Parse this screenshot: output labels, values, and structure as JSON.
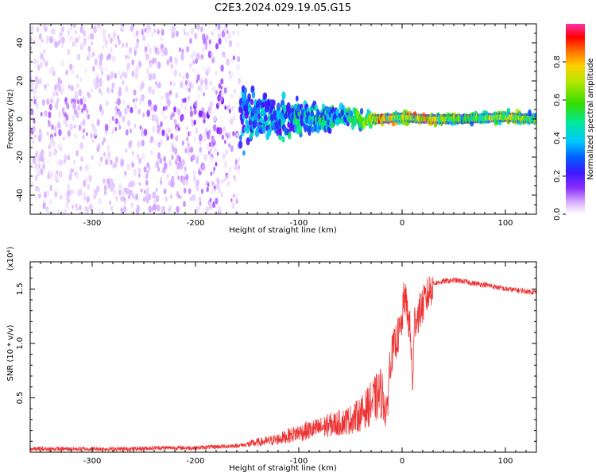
{
  "figure": {
    "title": "C2E3.2024.029.19.05.G15"
  },
  "colors": {
    "snr_line": "#ee3333",
    "colormap": [
      "#ffffff",
      "#d9b3ff",
      "#9933ff",
      "#6600ff",
      "#2222ff",
      "#00c8ff",
      "#00e89a",
      "#33dd00",
      "#b8e600",
      "#ffd000",
      "#ff6a00",
      "#ff0000",
      "#ff33aa"
    ]
  },
  "chart_data": [
    {
      "type": "heatmap",
      "title": "",
      "xlabel": "Height of straight line (km)",
      "ylabel": "Frequency (Hz)",
      "xlim": [
        -360,
        130
      ],
      "ylim": [
        -50,
        50
      ],
      "xticks": [
        -300,
        -200,
        -100,
        0,
        100
      ],
      "xtick_labels": [
        "-300",
        "-200",
        "-100",
        "0",
        "100"
      ],
      "yticks": [
        -40,
        -20,
        0,
        20,
        40
      ],
      "ytick_labels": [
        "-40",
        "-20",
        "0",
        "20",
        "40"
      ],
      "colorbar": {
        "label": "Normalized spectral amplitude",
        "range": [
          0.0,
          1.0
        ],
        "ticks": [
          0.0,
          0.2,
          0.4,
          0.6,
          0.8
        ],
        "tick_labels": [
          "0.0",
          "0.2",
          "0.4",
          "0.6",
          "0.8"
        ]
      },
      "grid": false,
      "description_points": [
        {
          "x": -300,
          "peak_freq": 0,
          "spread_hz": 50,
          "amplitude": 0.15
        },
        {
          "x": -200,
          "peak_freq": 0,
          "spread_hz": 50,
          "amplitude": 0.2
        },
        {
          "x": -150,
          "peak_freq": 2,
          "spread_hz": 15,
          "amplitude": 0.45
        },
        {
          "x": -100,
          "peak_freq": 1,
          "spread_hz": 8,
          "amplitude": 0.5
        },
        {
          "x": -50,
          "peak_freq": 0,
          "spread_hz": 5,
          "amplitude": 0.55
        },
        {
          "x": -20,
          "peak_freq": 0,
          "spread_hz": 2,
          "amplitude": 0.85
        },
        {
          "x": 0,
          "peak_freq": 1,
          "spread_hz": 3,
          "amplitude": 0.7
        },
        {
          "x": 20,
          "peak_freq": 0,
          "spread_hz": 2,
          "amplitude": 0.85
        },
        {
          "x": 60,
          "peak_freq": 0,
          "spread_hz": 2,
          "amplitude": 0.6
        },
        {
          "x": 100,
          "peak_freq": 1,
          "spread_hz": 3,
          "amplitude": 0.75
        },
        {
          "x": 130,
          "peak_freq": 0,
          "spread_hz": 2,
          "amplitude": 0.6
        }
      ]
    },
    {
      "type": "line",
      "title": "",
      "xlabel": "Height of straight line (km)",
      "ylabel": "SNR (10 * v/v)",
      "scale_label": "(x10⁴)",
      "xlim": [
        -360,
        130
      ],
      "ylim": [
        0.0,
        1.75
      ],
      "xticks": [
        -300,
        -200,
        -100,
        0,
        100
      ],
      "xtick_labels": [
        "-300",
        "-200",
        "-100",
        "0",
        "100"
      ],
      "yticks": [
        0.5,
        1.0,
        1.5
      ],
      "ytick_labels": [
        "0.5",
        "1.0",
        "1.5"
      ],
      "grid": false,
      "series": [
        {
          "x": [
            -360,
            -340,
            -320,
            -300,
            -280,
            -260,
            -240,
            -220,
            -200,
            -180,
            -160,
            -150,
            -140,
            -130,
            -120,
            -110,
            -100,
            -90,
            -80,
            -70,
            -60,
            -50,
            -40,
            -30,
            -25,
            -20,
            -17,
            -15,
            -12,
            -10,
            -8,
            -5,
            -2,
            0,
            2,
            5,
            8,
            10,
            12,
            15,
            20,
            25,
            30,
            40,
            50,
            60,
            70,
            80,
            90,
            95,
            100,
            110,
            120,
            130
          ],
          "y": [
            0.03,
            0.03,
            0.03,
            0.03,
            0.03,
            0.03,
            0.04,
            0.04,
            0.04,
            0.05,
            0.06,
            0.07,
            0.09,
            0.1,
            0.12,
            0.15,
            0.18,
            0.2,
            0.22,
            0.25,
            0.27,
            0.3,
            0.35,
            0.45,
            0.5,
            0.55,
            0.45,
            0.3,
            0.8,
            0.9,
            0.95,
            1.05,
            1.1,
            1.2,
            1.45,
            1.3,
            1.1,
            0.6,
            1.2,
            1.25,
            1.35,
            1.45,
            1.55,
            1.57,
            1.58,
            1.57,
            1.55,
            1.54,
            1.52,
            1.51,
            1.5,
            1.49,
            1.48,
            1.47
          ]
        }
      ]
    }
  ]
}
